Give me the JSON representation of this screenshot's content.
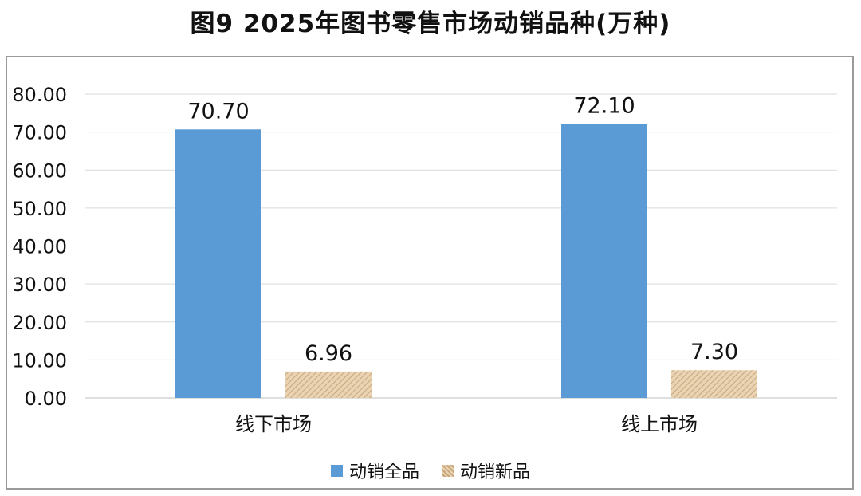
{
  "title": "图9  2025年图书零售市场动销品种(万种)",
  "colors": {
    "series1": "#5b9bd5",
    "series2_base": "#e9d3b3",
    "series2_stripe": "#c9a77d",
    "grid": "#d9d9d9"
  },
  "chart_data": {
    "type": "bar",
    "title": "图9  2025年图书零售市场动销品种(万种)",
    "xlabel": "",
    "ylabel": "",
    "categories": [
      "线下市场",
      "线上市场"
    ],
    "series": [
      {
        "name": "动销全品",
        "values": [
          70.7,
          72.1
        ],
        "labels": [
          "70.70",
          "72.10"
        ]
      },
      {
        "name": "动销新品",
        "values": [
          6.96,
          7.3
        ],
        "labels": [
          "6.96",
          "7.30"
        ]
      }
    ],
    "ylim": [
      0,
      80
    ],
    "yticks": [
      "0.00",
      "10.00",
      "20.00",
      "30.00",
      "40.00",
      "50.00",
      "60.00",
      "70.00",
      "80.00"
    ],
    "grid": true,
    "legend_position": "bottom"
  }
}
